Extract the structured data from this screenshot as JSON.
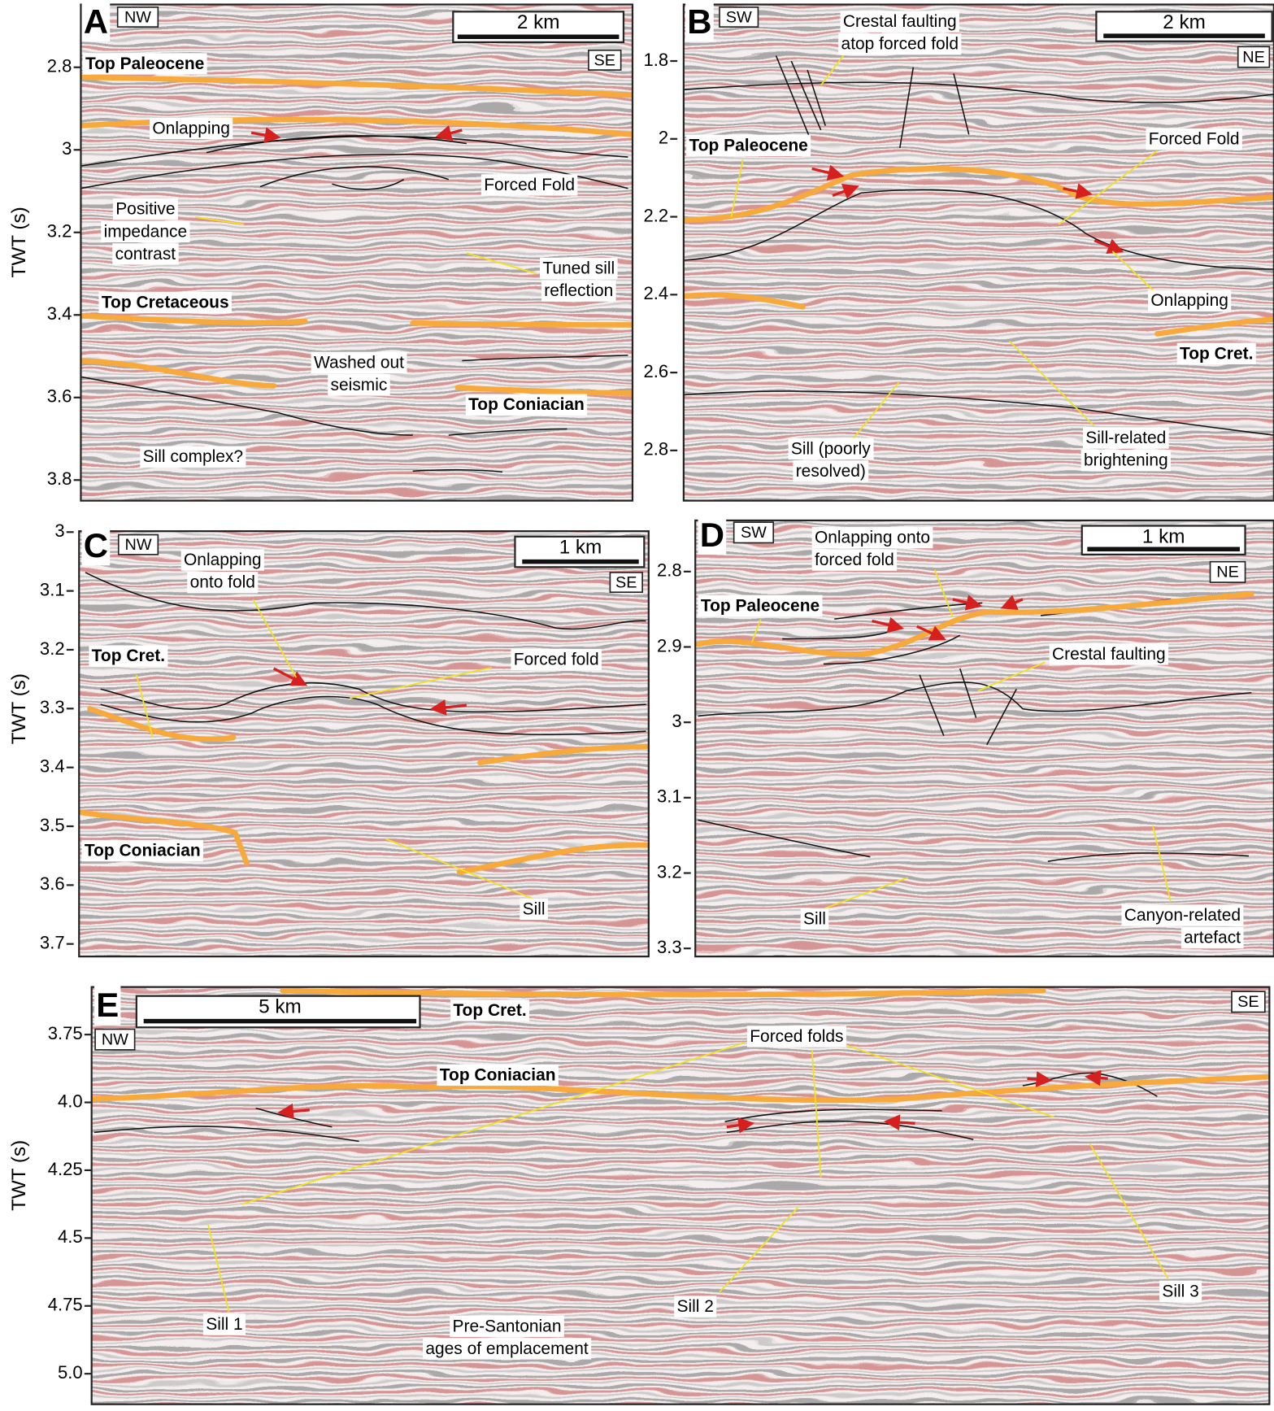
{
  "panels": [
    {
      "label": "A",
      "orientation_left": "NW",
      "orientation_right": "SE",
      "scale_bar": "2 km",
      "axis_title": "TWT (s)",
      "ticks": [
        "2.8",
        "3",
        "3.2",
        "3.4",
        "3.6",
        "3.8"
      ],
      "annotations": [
        {
          "lines": [
            "Top Paleocene"
          ]
        },
        {
          "lines": [
            "Onlapping"
          ]
        },
        {
          "lines": [
            "Forced Fold"
          ]
        },
        {
          "lines": [
            "Positive",
            "impedance",
            "contrast"
          ]
        },
        {
          "lines": [
            "Tuned sill",
            "reflection"
          ]
        },
        {
          "lines": [
            "Top Cretaceous"
          ]
        },
        {
          "lines": [
            "Washed out",
            "seismic"
          ]
        },
        {
          "lines": [
            "Top Coniacian"
          ]
        },
        {
          "lines": [
            "Sill complex?"
          ]
        }
      ]
    },
    {
      "label": "B",
      "orientation_left": "SW",
      "orientation_right": "NE",
      "scale_bar": "2 km",
      "ticks": [
        "1.8",
        "2",
        "2.2",
        "2.4",
        "2.6",
        "2.8"
      ],
      "annotations": [
        {
          "lines": [
            "Crestal faulting",
            "atop forced fold"
          ]
        },
        {
          "lines": [
            "Top Paleocene"
          ]
        },
        {
          "lines": [
            "Forced Fold"
          ]
        },
        {
          "lines": [
            "Onlapping"
          ]
        },
        {
          "lines": [
            "Top Cret."
          ]
        },
        {
          "lines": [
            "Sill (poorly",
            "resolved)"
          ]
        },
        {
          "lines": [
            "Sill-related",
            "brightening"
          ]
        }
      ]
    },
    {
      "label": "C",
      "orientation_left": "NW",
      "orientation_right": "SE",
      "scale_bar": "1 km",
      "axis_title": "TWT (s)",
      "ticks": [
        "3",
        "3.1",
        "3.2",
        "3.3",
        "3.4",
        "3.5",
        "3.6",
        "3.7"
      ],
      "annotations": [
        {
          "lines": [
            "Onlapping",
            "onto fold"
          ]
        },
        {
          "lines": [
            "Top Cret."
          ]
        },
        {
          "lines": [
            "Forced fold"
          ]
        },
        {
          "lines": [
            "Top Coniacian"
          ]
        },
        {
          "lines": [
            "Sill"
          ]
        }
      ]
    },
    {
      "label": "D",
      "orientation_left": "SW",
      "orientation_right": "NE",
      "scale_bar": "1 km",
      "ticks": [
        "2.8",
        "2.9",
        "3",
        "3.1",
        "3.2",
        "3.3"
      ],
      "annotations": [
        {
          "lines": [
            "Onlapping onto",
            "forced fold"
          ]
        },
        {
          "lines": [
            "Top Paleocene"
          ]
        },
        {
          "lines": [
            "Crestal faulting"
          ]
        },
        {
          "lines": [
            "Sill"
          ]
        },
        {
          "lines": [
            "Canyon-related",
            "artefact"
          ]
        }
      ]
    },
    {
      "label": "E",
      "orientation_left": "NW",
      "orientation_right": "SE",
      "scale_bar": "5 km",
      "axis_title": "TWT (s)",
      "ticks": [
        "3.75",
        "4.0",
        "4.25",
        "4.5",
        "4.75",
        "5.0"
      ],
      "annotations": [
        {
          "lines": [
            "Top Cret."
          ]
        },
        {
          "lines": [
            "Top Coniacian"
          ]
        },
        {
          "lines": [
            "Forced folds"
          ]
        },
        {
          "lines": [
            "Sill 1"
          ]
        },
        {
          "lines": [
            "Sill 2"
          ]
        },
        {
          "lines": [
            "Sill 3"
          ]
        },
        {
          "lines": [
            "Pre-Santonian",
            "ages of emplacement"
          ]
        }
      ]
    }
  ]
}
